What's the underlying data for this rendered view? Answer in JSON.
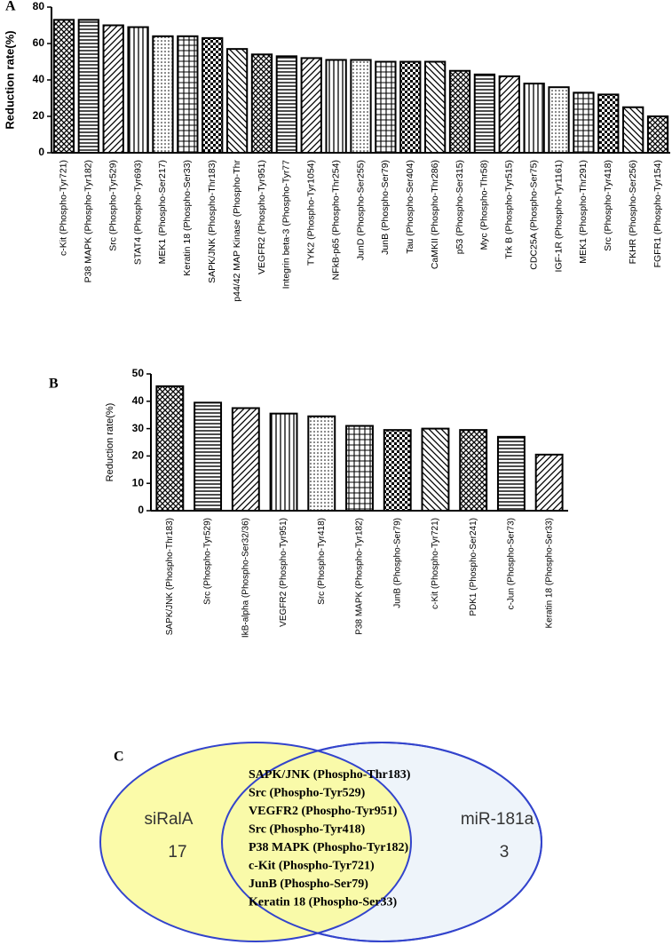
{
  "chart_data": [
    {
      "type": "bar",
      "panel_label": "A",
      "y_label": "Reduction rate(%)",
      "categories": [
        "c-Kit (Phospho-Tyr721)",
        "P38 MAPK (Phospho-Tyr182)",
        "Src (Phospho-Tyr529)",
        "STAT4 (Phospho-Tyr693)",
        "MEK1 (Phospho-Ser217)",
        "Keratin 18 (Phospho-Ser33)",
        "SAPK/JNK (Phospho-Thr183)",
        "p44/42 MAP Kinase (Phospho-Thr",
        "VEGFR2 (Phospho-Tyr951)",
        "Integrin beta-3 (Phospho-Tyr77",
        "TYK2 (Phospho-Tyr1054)",
        "NFkB-p65 (Phospho-Thr254)",
        "JunD (Phospho-Ser255)",
        "JunB (Phospho-Ser79)",
        "Tau (Phospho-Ser404)",
        "CaMKII (Phospho-Thr286)",
        "p53 (Phospho-Ser315)",
        "Myc (Phospho-Thr58)",
        "Trk B (Phospho-Tyr515)",
        "CDC25A (Phospho-Ser75)",
        "IGF-1R (Phospho-Tyr1161)",
        "MEK1 (Phospho-Thr291)",
        "Src (Phospho-Tyr418)",
        "FKHR (Phospho-Ser256)",
        "FGFR1 (Phospho-Tyr154)"
      ],
      "values": [
        73,
        73,
        70,
        69,
        64,
        64,
        63,
        57,
        54,
        53,
        52,
        51,
        51,
        50,
        50,
        50,
        45,
        43,
        42,
        38,
        36,
        33,
        32,
        25,
        20
      ],
      "color": "#000000",
      "ylim": [
        0,
        80
      ],
      "yticks": [
        0,
        20,
        40,
        60,
        80
      ]
    },
    {
      "type": "bar",
      "panel_label": "B",
      "y_label": "Reduction rate(%)",
      "categories": [
        "SAPK/JNK (Phospho-Thr183)",
        "Src (Phospho-Tyr529)",
        "IkB-alpha (Phospho-Ser32/36)",
        "VEGFR2 (Phospho-Tyr951)",
        "Src (Phospho-Tyr418)",
        "P38 MAPK (Phospho-Tyr182)",
        "JunB (Phospho-Ser79)",
        "c-Kit (Phospho-Tyr721)",
        "PDK1 (Phospho-Ser241)",
        "c-Jun (Phospho-Ser73)",
        "Keratin 18 (Phospho-Ser33)"
      ],
      "values": [
        45.5,
        39.5,
        37.5,
        35.5,
        34.5,
        31,
        29.5,
        30,
        29.5,
        27,
        20.5
      ],
      "color": "#000000",
      "ylim": [
        0,
        50
      ],
      "yticks": [
        0,
        10,
        20,
        30,
        40,
        50
      ]
    },
    {
      "type": "venn",
      "panel_label": "C",
      "sets": [
        {
          "name": "siRalA",
          "count": 17,
          "color": "#fafa9a"
        },
        {
          "name": "miR-181a",
          "count": 3,
          "color": "#eef4fa"
        }
      ],
      "intersection": [
        "SAPK/JNK (Phospho-Thr183)",
        "Src (Phospho-Tyr529)",
        "VEGFR2 (Phospho-Tyr951)",
        "Src (Phospho-Tyr418)",
        "P38 MAPK (Phospho-Tyr182)",
        "c-Kit (Phospho-Tyr721)",
        "JunB (Phospho-Ser79)",
        "Keratin 18 (Phospho-Ser33)"
      ]
    }
  ]
}
